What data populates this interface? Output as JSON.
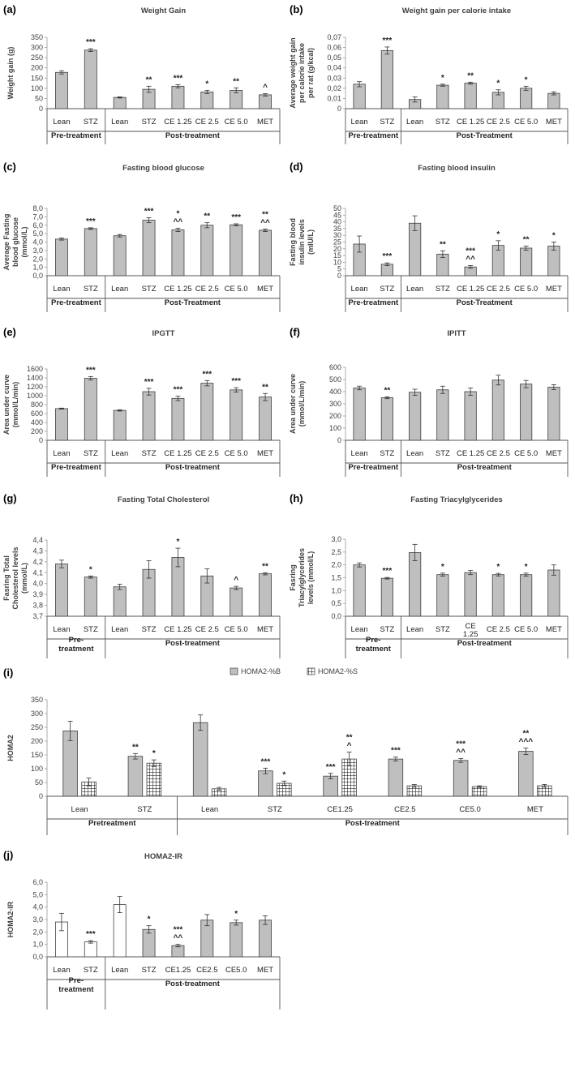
{
  "chart_data": [
    {
      "letter": "(a)",
      "type": "bar",
      "title": "Weight Gain",
      "ylabel": "Weight gain (g)",
      "ylim": [
        0,
        350
      ],
      "yticks": [
        "0",
        "50",
        "100",
        "150",
        "200",
        "250",
        "300",
        "350"
      ],
      "categories": [
        "Lean",
        "STZ",
        "Lean",
        "STZ",
        "CE 1.25",
        "CE 2.5",
        "CE 5.0",
        "MET"
      ],
      "groups": [
        "Pre-treatment",
        "Post-treatment"
      ],
      "series": [
        {
          "values": [
            178,
            287,
            55,
            95,
            110,
            82,
            90,
            68
          ],
          "errors": [
            8,
            7,
            3,
            15,
            8,
            8,
            12,
            6
          ],
          "sig": [
            "",
            "***",
            "",
            "**",
            "***",
            "*",
            "**",
            "^"
          ],
          "color": "#bfbfbf"
        }
      ]
    },
    {
      "letter": "(b)",
      "type": "bar",
      "title": "Weight gain per calorie intake",
      "ylabel": "Average weight gain per calorie intake per rat (g/kcal)",
      "ylim": [
        0,
        0.07
      ],
      "yticks": [
        "0",
        "0,01",
        "0,02",
        "0,03",
        "0,04",
        "0,05",
        "0,06",
        "0,07"
      ],
      "categories": [
        "Lean",
        "STZ",
        "Lean",
        "STZ",
        "CE 1.25",
        "CE 2.5",
        "CE 5.0",
        "MET"
      ],
      "groups": [
        "Pre-treatment",
        "Post-Treatment"
      ],
      "series": [
        {
          "values": [
            0.024,
            0.057,
            0.009,
            0.023,
            0.025,
            0.016,
            0.02,
            0.015
          ],
          "errors": [
            0.0025,
            0.0035,
            0.0025,
            0.001,
            0.001,
            0.0025,
            0.002,
            0.0015
          ],
          "sig": [
            "",
            "***",
            "",
            "*",
            "**",
            "*",
            "*",
            ""
          ],
          "color": "#bfbfbf"
        }
      ]
    },
    {
      "letter": "(c)",
      "type": "bar",
      "title": "Fasting blood glucose",
      "ylabel": "Average Fasting blood glucose (mmol/L)",
      "ylim": [
        0,
        8
      ],
      "yticks": [
        "0,0",
        "1,0",
        "2,0",
        "3,0",
        "4,0",
        "5,0",
        "6,0",
        "7,0",
        "8,0"
      ],
      "categories": [
        "Lean",
        "STZ",
        "Lean",
        "STZ",
        "CE 1.25",
        "CE 2.5",
        "CE 5.0",
        "MET"
      ],
      "groups": [
        "Pre-treatment",
        "Post-Treatment"
      ],
      "series": [
        {
          "values": [
            4.35,
            5.6,
            4.75,
            6.6,
            5.45,
            6.0,
            6.05,
            5.4
          ],
          "errors": [
            0.12,
            0.1,
            0.15,
            0.3,
            0.2,
            0.3,
            0.12,
            0.15
          ],
          "sig": [
            "",
            "***",
            "",
            "***",
            "*\n^^",
            "**",
            "***",
            "**\n^^"
          ],
          "color": "#bfbfbf"
        }
      ]
    },
    {
      "letter": "(d)",
      "type": "bar",
      "title": "Fasting blood insulin",
      "ylabel": "Fasting blood insulin levels (mIU/L)",
      "ylim": [
        0,
        50
      ],
      "yticks": [
        "0",
        "5",
        "10",
        "15",
        "20",
        "25",
        "30",
        "35",
        "40",
        "45",
        "50"
      ],
      "categories": [
        "Lean",
        "STZ",
        "Lean",
        "STZ",
        "CE 1.25",
        "CE 2.5",
        "CE 5.0",
        "MET"
      ],
      "groups": [
        "Pre-treatment",
        "Post-Treatment"
      ],
      "series": [
        {
          "values": [
            23.5,
            8.5,
            39,
            16,
            6.5,
            22.5,
            20.5,
            22
          ],
          "errors": [
            6,
            1,
            5.5,
            2.5,
            1,
            3.5,
            1.5,
            3
          ],
          "sig": [
            "",
            "***",
            "",
            "**",
            "***\n^^",
            "*",
            "**",
            "*"
          ],
          "color": "#bfbfbf"
        }
      ]
    },
    {
      "letter": "(e)",
      "type": "bar",
      "title": "IPGTT",
      "ylabel": "Area under curve (mmol/L/min)",
      "ylim": [
        0,
        1600
      ],
      "yticks": [
        "0",
        "200",
        "400",
        "600",
        "800",
        "1000",
        "1200",
        "1400",
        "1600"
      ],
      "categories": [
        "Lean",
        "STZ",
        "Lean",
        "STZ",
        "CE 1.25",
        "CE 2.5",
        "CE 5.0",
        "MET"
      ],
      "groups": [
        "Pre-treatment",
        "Post-treatment"
      ],
      "series": [
        {
          "values": [
            710,
            1390,
            670,
            1090,
            940,
            1280,
            1130,
            970
          ],
          "errors": [
            12,
            40,
            15,
            75,
            50,
            60,
            50,
            80
          ],
          "sig": [
            "",
            "***",
            "",
            "***",
            "***",
            "***",
            "***",
            "**"
          ],
          "color": "#bfbfbf"
        }
      ]
    },
    {
      "letter": "(f)",
      "type": "bar",
      "title": "IPITT",
      "ylabel": "Area under curve (mmol/L/min)",
      "ylim": [
        0,
        600
      ],
      "yticks": [
        "0",
        "100",
        "200",
        "300",
        "400",
        "500",
        "600"
      ],
      "categories": [
        "Lean",
        "STZ",
        "Lean",
        "STZ",
        "CE 1.25",
        "CE 2.5",
        "CE 5.0",
        "MET"
      ],
      "groups": [
        "Pre-treatment",
        "Post-treatment"
      ],
      "series": [
        {
          "values": [
            430,
            350,
            395,
            415,
            400,
            495,
            462,
            437
          ],
          "errors": [
            15,
            8,
            25,
            30,
            30,
            40,
            30,
            20
          ],
          "sig": [
            "",
            "**",
            "",
            "",
            "",
            "",
            "",
            ""
          ],
          "color": "#bfbfbf"
        }
      ]
    },
    {
      "letter": "(g)",
      "type": "bar",
      "title": "Fasting Total Cholesterol",
      "ylabel": "Fasring Total Cholesterol levels (mmol/L)",
      "ylim": [
        3.7,
        4.4
      ],
      "yticks": [
        "3,7",
        "3,8",
        "3,9",
        "4,0",
        "4,1",
        "4,2",
        "4,3",
        "4,4"
      ],
      "categories": [
        "Lean",
        "STZ",
        "Lean",
        "STZ",
        "CE 1.25",
        "CE 2.5",
        "CE 5.0",
        "MET"
      ],
      "groups": [
        "Pre-\ntreatment",
        "Post-treatment"
      ],
      "series": [
        {
          "values": [
            4.18,
            4.06,
            3.97,
            4.13,
            4.24,
            4.07,
            3.96,
            4.09
          ],
          "errors": [
            0.035,
            0.01,
            0.025,
            0.08,
            0.085,
            0.065,
            0.015,
            0.01
          ],
          "sig": [
            "",
            "*",
            "",
            "",
            "*",
            "",
            "^",
            "**"
          ],
          "color": "#bfbfbf"
        }
      ]
    },
    {
      "letter": "(h)",
      "type": "bar",
      "title": "Fasting Triacylglycerides",
      "ylabel": "Fasring Triacylglycerides levels (mmol/L)",
      "ylim": [
        0,
        3
      ],
      "yticks": [
        "0,0",
        "0,5",
        "1,0",
        "1,5",
        "2,0",
        "2,5",
        "3,0"
      ],
      "categories": [
        "Lean",
        "STZ",
        "Lean",
        "STZ",
        "CE\n1.25",
        "CE 2.5",
        "CE 5.0",
        "MET"
      ],
      "groups": [
        "Pre-\ntreatment",
        "Post-treatment"
      ],
      "series": [
        {
          "values": [
            2.0,
            1.48,
            2.48,
            1.62,
            1.7,
            1.62,
            1.62,
            1.8
          ],
          "errors": [
            0.08,
            0.03,
            0.32,
            0.06,
            0.08,
            0.05,
            0.06,
            0.2
          ],
          "sig": [
            "",
            "***",
            "",
            "*",
            "",
            "*",
            "*",
            ""
          ],
          "color": "#bfbfbf"
        }
      ]
    },
    {
      "letter": "(i)",
      "type": "bar",
      "title": "",
      "ylabel": "HOMA2",
      "ylim": [
        0,
        350
      ],
      "yticks": [
        "0",
        "50",
        "100",
        "150",
        "200",
        "250",
        "300",
        "350"
      ],
      "categories": [
        "Lean",
        "STZ",
        "Lean",
        "STZ",
        "CE1.25",
        "CE2.5",
        "CE5.0",
        "MET"
      ],
      "groups": [
        "Pretreatment",
        "Post-treatment"
      ],
      "legend": "top",
      "series": [
        {
          "name": "HOMA2-%B",
          "values": [
            237,
            145,
            267,
            92,
            73,
            135,
            130,
            163
          ],
          "errors": [
            35,
            10,
            28,
            10,
            10,
            7,
            7,
            12
          ],
          "sig": [
            "",
            "**",
            "",
            "***",
            "***",
            "***",
            "***\n^^",
            "**\n^^^"
          ],
          "color": "#bfbfbf"
        },
        {
          "name": "HOMA2-%S",
          "values": [
            52,
            120,
            27,
            47,
            135,
            38,
            35,
            38
          ],
          "errors": [
            14,
            12,
            5,
            8,
            25,
            5,
            3,
            5
          ],
          "sig": [
            "",
            "*",
            "",
            "*",
            "**\n^",
            "",
            "",
            ""
          ],
          "color": "#ffffff",
          "pattern": "grid"
        }
      ]
    },
    {
      "letter": "(j)",
      "type": "bar",
      "title": "HOMA2-IR",
      "ylabel": "HOMA2-IR",
      "ylim": [
        0,
        6
      ],
      "yticks": [
        "0,0",
        "1,0",
        "2,0",
        "3,0",
        "4,0",
        "5,0",
        "6,0"
      ],
      "categories": [
        "Lean",
        "STZ",
        "Lean",
        "STZ",
        "CE1.25",
        "CE2.5",
        "CE5.0",
        "MET"
      ],
      "groups": [
        "Pre-\ntreatment",
        "Post-treatment"
      ],
      "series": [
        {
          "values": [
            2.8,
            1.2,
            4.2,
            2.2,
            0.9,
            2.95,
            2.75,
            2.95
          ],
          "errors": [
            0.7,
            0.1,
            0.65,
            0.3,
            0.1,
            0.45,
            0.2,
            0.35
          ],
          "sig": [
            "",
            "***",
            "",
            "*",
            "***\n^^",
            "",
            "*",
            ""
          ],
          "colors": [
            "#ffffff",
            "#ffffff",
            "#ffffff",
            "#bfbfbf",
            "#bfbfbf",
            "#bfbfbf",
            "#bfbfbf",
            "#bfbfbf"
          ]
        }
      ]
    }
  ]
}
